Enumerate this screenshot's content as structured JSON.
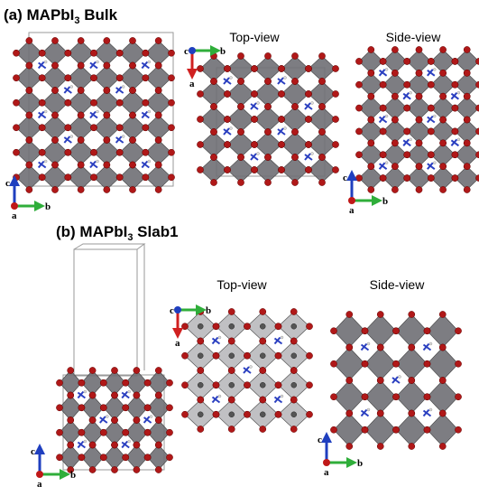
{
  "panels": [
    {
      "title": {
        "prefix": "(a) MAPbI",
        "sub": "3",
        "suffix": " Bulk"
      },
      "views": [
        "Top-view",
        "Side-view"
      ],
      "axes": [
        [
          "c",
          "b",
          "a"
        ],
        [
          "c",
          "b",
          "a"
        ],
        [
          "c",
          "b",
          "a"
        ]
      ]
    },
    {
      "title": {
        "prefix": "(b) MAPbI",
        "sub": "3",
        "suffix": " Slab1"
      },
      "views": [
        "Top-view",
        "Side-view"
      ],
      "axes": [
        [
          "c",
          "b",
          "a"
        ],
        [
          "c",
          "b",
          "a"
        ],
        [
          "c",
          "b",
          "a"
        ]
      ]
    }
  ]
}
